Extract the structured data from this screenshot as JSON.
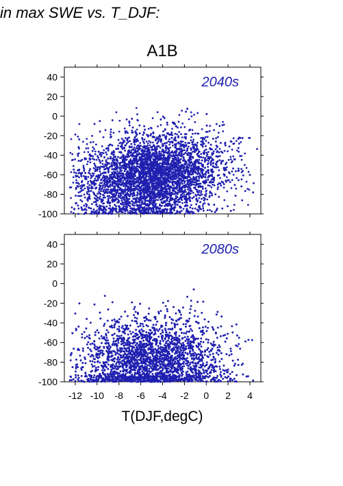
{
  "page": {
    "title": "in max SWE vs. T_DJF:"
  },
  "chart_data": {
    "type": "scatter",
    "title": "A1B",
    "xlabel": "T(DJF,degC)",
    "ylabel": "",
    "xlim": [
      -13,
      5
    ],
    "ylim": [
      -100,
      50
    ],
    "xticks": [
      -12,
      -10,
      -8,
      -6,
      -4,
      -2,
      0,
      2,
      4
    ],
    "yticks": [
      40,
      20,
      0,
      -20,
      -40,
      -60,
      -80,
      -100
    ],
    "grid": false,
    "colors": {
      "points": "#2020b0",
      "label": "#2020b0",
      "axis": "#000000"
    },
    "panels": [
      {
        "label": "2040s",
        "n_points": 5000,
        "x_range": [
          -12.5,
          5
        ],
        "y_range": [
          -100,
          9
        ],
        "trend_slope": -4.2,
        "intercept": -62
      },
      {
        "label": "2080s",
        "n_points": 5000,
        "x_range": [
          -12.5,
          5
        ],
        "y_range": [
          -100,
          14
        ],
        "trend_slope": -2.6,
        "intercept": -80
      }
    ]
  }
}
